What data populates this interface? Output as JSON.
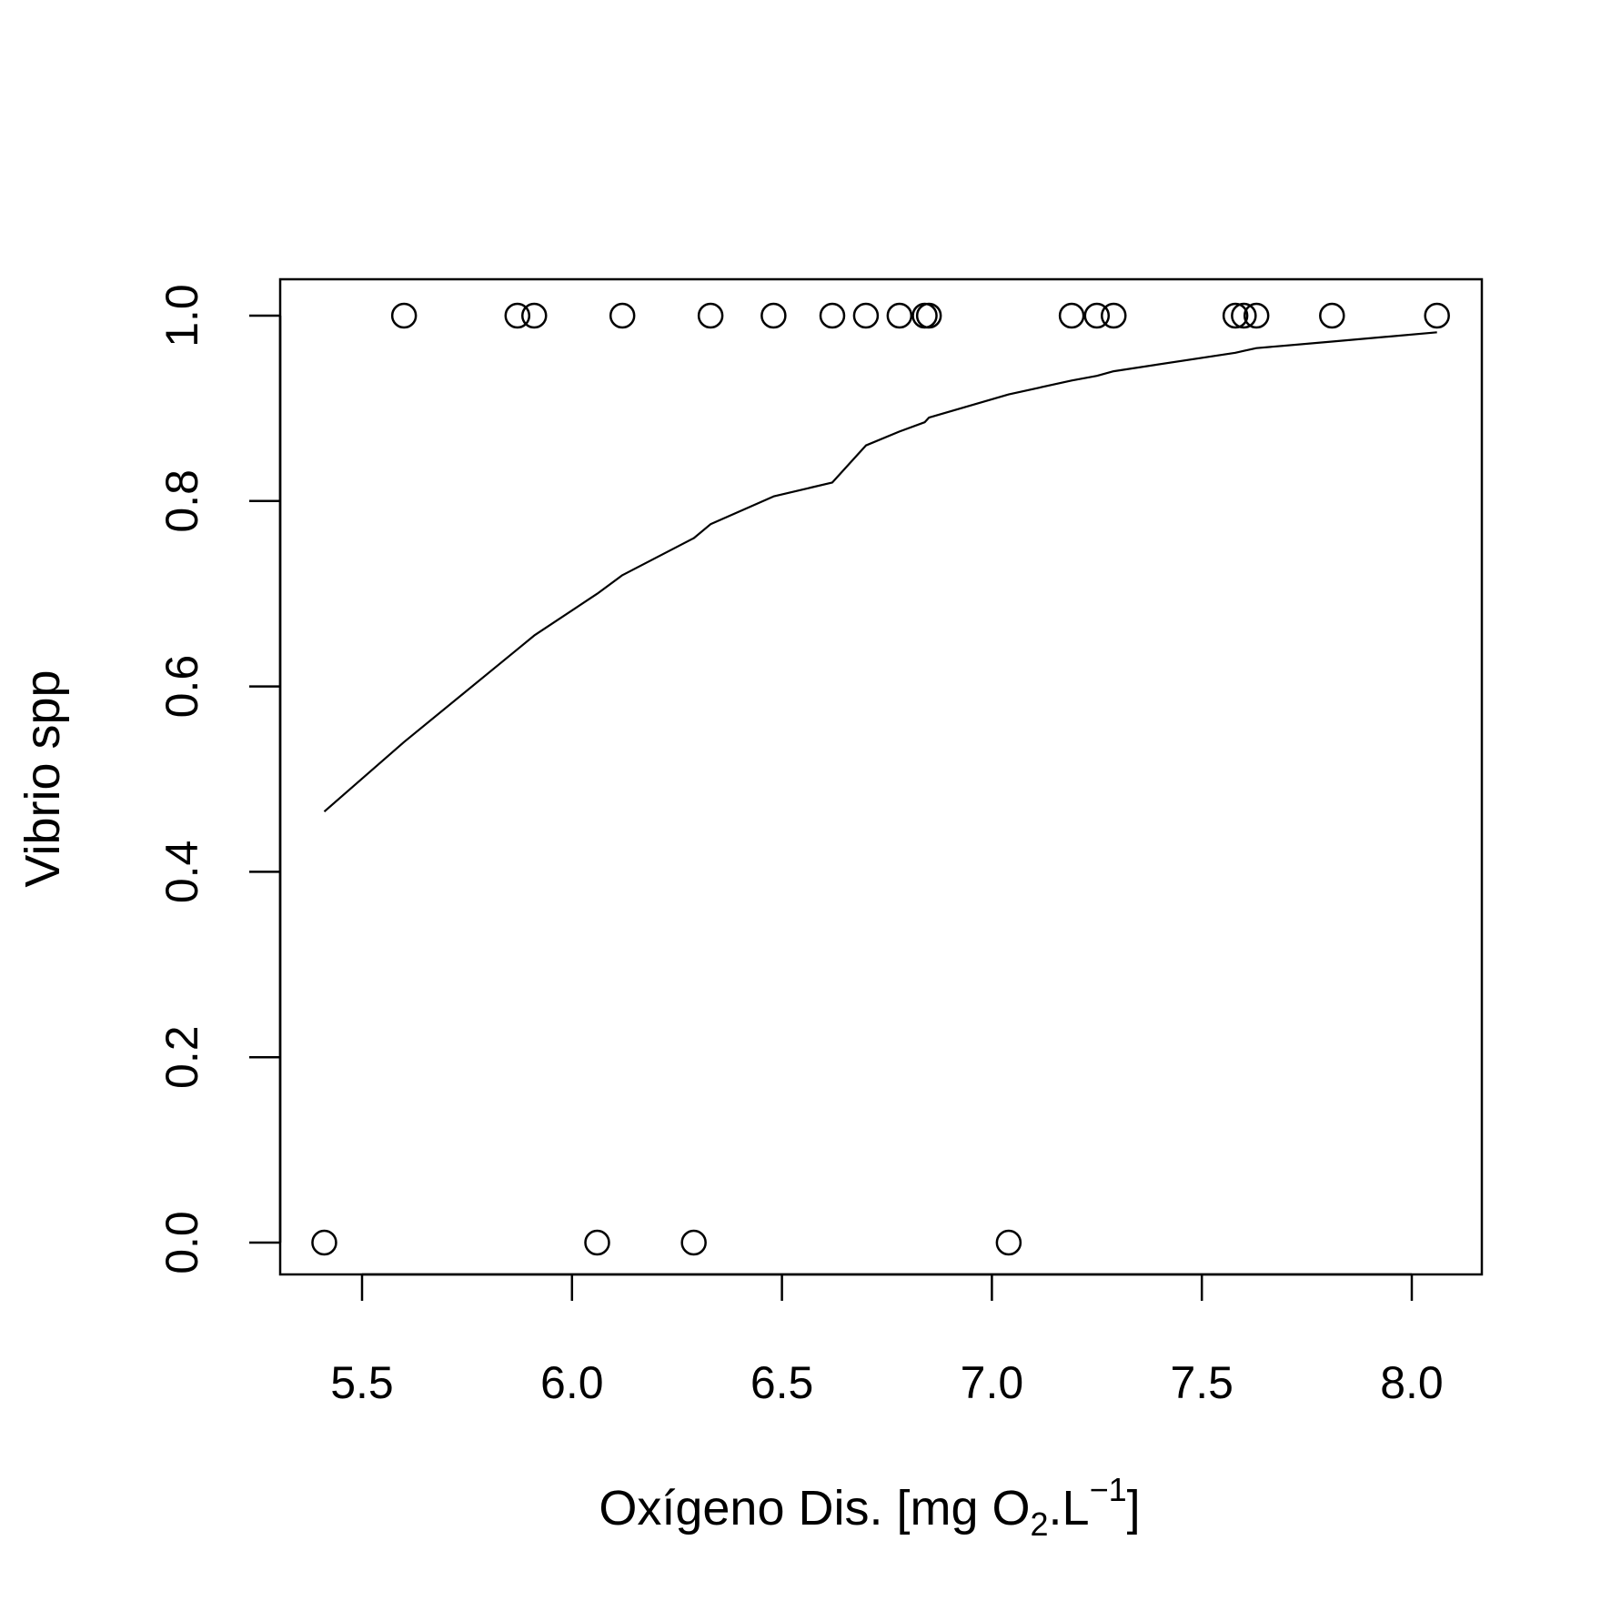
{
  "chart_data": {
    "type": "scatter",
    "xlabel": {
      "prefix": "Oxígeno Dis. [mg O",
      "sub": "2",
      "middle": ".L",
      "sup": "−1",
      "suffix": "]"
    },
    "ylabel": "Vibrio spp",
    "xlim": [
      5.35,
      8.17
    ],
    "ylim": [
      0.0,
      1.0
    ],
    "x_ticks": [
      5.5,
      6.0,
      6.5,
      7.0,
      7.5,
      8.0
    ],
    "x_tick_labels": [
      "5.5",
      "6.0",
      "6.5",
      "7.0",
      "7.5",
      "8.0"
    ],
    "y_ticks": [
      0.0,
      0.2,
      0.4,
      0.6,
      0.8,
      1.0
    ],
    "y_tick_labels": [
      "0.0",
      "0.2",
      "0.4",
      "0.6",
      "0.8",
      "1.0"
    ],
    "grid": false,
    "points": {
      "x": [
        5.41,
        5.6,
        5.87,
        5.91,
        6.06,
        6.12,
        6.29,
        6.33,
        6.48,
        6.62,
        6.7,
        6.78,
        6.84,
        6.85,
        7.04,
        7.19,
        7.25,
        7.29,
        7.58,
        7.6,
        7.63,
        7.81,
        8.06
      ],
      "y": [
        0,
        1,
        1,
        1,
        0,
        1,
        0,
        1,
        1,
        1,
        1,
        1,
        1,
        1,
        0,
        1,
        1,
        1,
        1,
        1,
        1,
        1,
        1
      ]
    },
    "fitted_line": {
      "x": [
        5.41,
        5.6,
        5.87,
        5.91,
        6.06,
        6.12,
        6.29,
        6.33,
        6.48,
        6.62,
        6.7,
        6.78,
        6.84,
        6.85,
        7.04,
        7.19,
        7.25,
        7.29,
        7.58,
        7.6,
        7.63,
        7.81,
        8.06
      ],
      "y": [
        0.465,
        0.54,
        0.64,
        0.655,
        0.7,
        0.72,
        0.76,
        0.775,
        0.805,
        0.82,
        0.86,
        0.875,
        0.885,
        0.89,
        0.915,
        0.93,
        0.935,
        0.94,
        0.96,
        0.962,
        0.965,
        0.972,
        0.982
      ]
    }
  }
}
